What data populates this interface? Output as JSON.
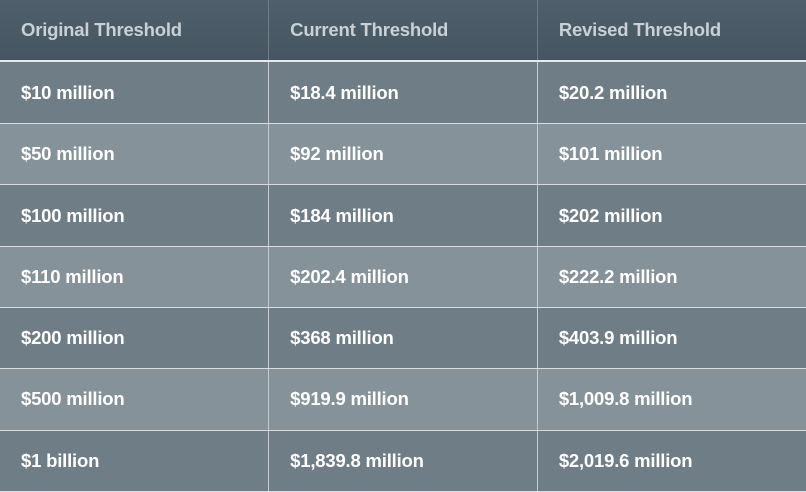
{
  "table": {
    "headers": [
      "Original Threshold",
      "Current Threshold",
      "Revised Threshold"
    ],
    "rows": [
      [
        "$10 million",
        "$18.4 million",
        "$20.2 million"
      ],
      [
        "$50 million",
        "$92 million",
        "$101 million"
      ],
      [
        "$100 million",
        "$184 million",
        "$202 million"
      ],
      [
        "$110 million",
        "$202.4 million",
        "$222.2 million"
      ],
      [
        "$200 million",
        "$368 million",
        "$403.9 million"
      ],
      [
        "$500 million",
        "$919.9 million",
        "$1,009.8 million"
      ],
      [
        "$1 billion",
        "$1,839.8 million",
        "$2,019.6 million"
      ]
    ]
  }
}
